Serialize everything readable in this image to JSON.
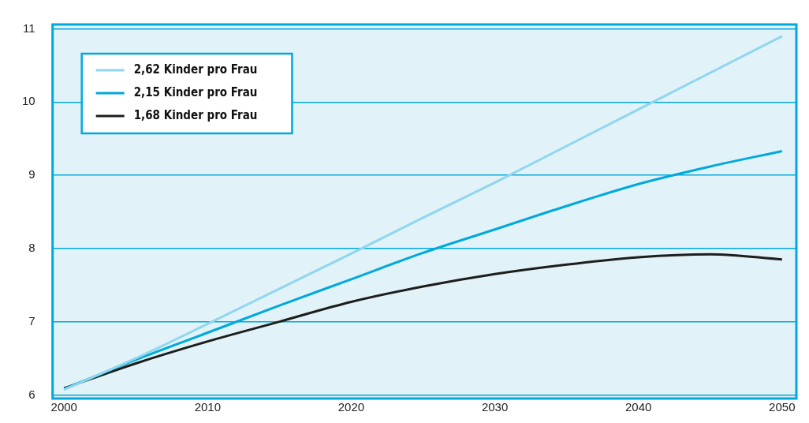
{
  "chart_data": {
    "type": "line",
    "x": [
      2000,
      2005,
      2010,
      2015,
      2020,
      2025,
      2030,
      2035,
      2040,
      2045,
      2050
    ],
    "xlim": [
      1999.2,
      2051
    ],
    "xticks": [
      2000,
      2010,
      2020,
      2030,
      2040,
      2050
    ],
    "ylim": [
      5.95,
      11.06
    ],
    "yticks": [
      6,
      7,
      8,
      9,
      10,
      11
    ],
    "grid": "y",
    "legend": "top left",
    "marker": "none",
    "line_style": "solid",
    "series": [
      {
        "name": "2,62 Kinder pro Frau",
        "color": "#8fd6ee",
        "values": [
          6.07,
          6.5,
          6.97,
          7.45,
          7.93,
          8.42,
          8.9,
          9.4,
          9.9,
          10.4,
          10.9
        ]
      },
      {
        "name": "2,15 Kinder pro Frau",
        "color": "#00a9dc",
        "values": [
          6.08,
          6.48,
          6.85,
          7.22,
          7.58,
          7.94,
          8.26,
          8.58,
          8.88,
          9.12,
          9.33
        ]
      },
      {
        "name": "1,68 Kinder pro Frau",
        "color": "#1d1d1b",
        "values": [
          6.09,
          6.43,
          6.73,
          7.0,
          7.27,
          7.48,
          7.65,
          7.78,
          7.88,
          7.92,
          7.85
        ]
      }
    ]
  }
}
